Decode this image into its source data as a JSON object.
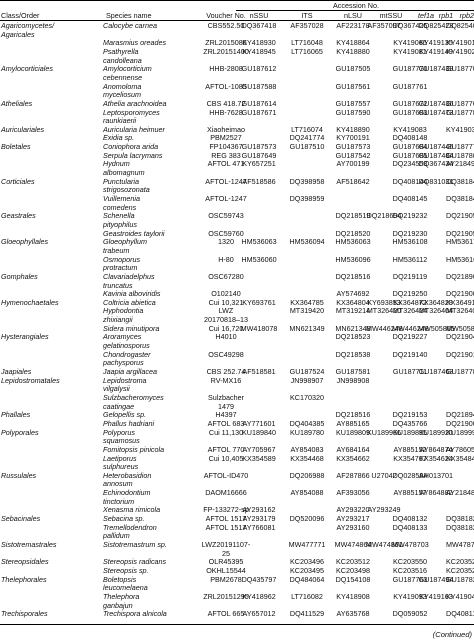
{
  "table": {
    "group_header": "Accession No.",
    "columns": [
      "Class/Order",
      "Species name",
      "Voucher No.",
      "nSSU",
      "ITS",
      "nLSU",
      "mtSSU",
      "tef1a",
      "rpb1",
      "rpb2"
    ],
    "rows": [
      {
        "order": "Agaricomycetes/",
        "species": "Calocybe carnea",
        "voucher": "CBS552.50",
        "nssu": "DQ367418",
        "its": "AF357028",
        "nlsu": "AF223178",
        "mtssu": "AF357097",
        "tef": "DQ367425",
        "rpb1": "DQ825423",
        "rpb2": "DQ825407"
      },
      {
        "order": "Agaricales",
        "species": "",
        "voucher": "",
        "nssu": "",
        "its": "",
        "nlsu": "",
        "mtssu": "",
        "tef": "",
        "rpb1": "",
        "rpb2": ""
      },
      {
        "order": "",
        "species": "Marasmius oreades",
        "voucher": "ZRL2015086",
        "nssu": "KY418930",
        "its": "LT716048",
        "nlsu": "KY418864",
        "mtssu": "",
        "tef": "KY419066",
        "rpb1": "KY419135",
        "rpb2": "KY419010"
      },
      {
        "order": "",
        "species": "Psathyrella",
        "voucher": "ZRL20151400",
        "nssu": "KY418945",
        "its": "LT716065",
        "nlsu": "KY418880",
        "mtssu": "",
        "tef": "KY419081",
        "rpb1": "KY419149",
        "rpb2": "KY419025"
      },
      {
        "order": "",
        "species": "candolleana",
        "voucher": "",
        "nssu": "",
        "its": "",
        "nlsu": "",
        "mtssu": "",
        "tef": "",
        "rpb1": "",
        "rpb2": ""
      },
      {
        "order": "Amylocorticiales",
        "species": "Amylocorticium",
        "voucher": "HHB-2808",
        "nssu": "GU187612",
        "its": "",
        "nlsu": "GU187505",
        "mtssu": "",
        "tef": "GU187770",
        "rpb1": "GU187439",
        "rpb2": "GU187700"
      },
      {
        "order": "",
        "species": "cebennense",
        "voucher": "",
        "nssu": "",
        "its": "",
        "nlsu": "",
        "mtssu": "",
        "tef": "",
        "rpb1": "",
        "rpb2": ""
      },
      {
        "order": "",
        "species": "Anomoloma",
        "voucher": "AFTOL-1085",
        "nssu": "GU187588",
        "its": "",
        "nlsu": "GU187561",
        "mtssu": "",
        "tef": "GU187761",
        "rpb1": "",
        "rpb2": ""
      },
      {
        "order": "",
        "species": "myceliosum",
        "voucher": "",
        "nssu": "",
        "its": "",
        "nlsu": "",
        "mtssu": "",
        "tef": "",
        "rpb1": "",
        "rpb2": ""
      },
      {
        "order": "Atheliales",
        "species": "Athelia arachnoidea",
        "voucher": "CBS 418.72",
        "nssu": "GU187614",
        "its": "",
        "nlsu": "GU187557",
        "mtssu": "",
        "tef": "GU187672",
        "rpb1": "GU187436",
        "rpb2": "GU187769"
      },
      {
        "order": "",
        "species": "Leptosporomyces",
        "voucher": "HHB-7628",
        "nssu": "GU187671",
        "its": "",
        "nlsu": "GU187590",
        "mtssu": "",
        "tef": "GU187683",
        "rpb1": "GU187473",
        "rpb2": "GU187788"
      },
      {
        "order": "",
        "species": "raunkiaerii",
        "voucher": "",
        "nssu": "",
        "its": "",
        "nlsu": "",
        "mtssu": "",
        "tef": "",
        "rpb1": "",
        "rpb2": ""
      },
      {
        "order": "Auriculariales",
        "species": "Auricularia heimuer",
        "voucher": "Xiaoheimao",
        "nssu": "",
        "its": "LT716074",
        "nlsu": "KY418890",
        "mtssu": "",
        "tef": "KY419083",
        "rpb1": "",
        "rpb2": "KY419035"
      },
      {
        "order": "",
        "species": "Exidia sp.",
        "voucher": "PBM2527",
        "nssu": "",
        "its": "DQ241774",
        "nlsu": "KY700191",
        "mtssu": "",
        "tef": "DQ408148",
        "rpb1": "",
        "rpb2": ""
      },
      {
        "order": "Boletales",
        "species": "Coniophora arida",
        "voucher": "FP104367",
        "nssu": "GU187573",
        "its": "GU187510",
        "nlsu": "GU187573",
        "mtssu": "",
        "tef": "GU187684",
        "rpb1": "GU187445",
        "rpb2": "GU187775"
      },
      {
        "order": "",
        "species": "Serpula lacrymans",
        "voucher": "REG 383",
        "nssu": "GU187649",
        "its": "",
        "nlsu": "GU187542",
        "mtssu": "",
        "tef": "GU187685",
        "rpb1": "GU187484",
        "rpb2": "GU187809"
      },
      {
        "order": "",
        "species": "Hydnum",
        "voucher": "AFTOL 471",
        "nssu": "KY657251",
        "its": "",
        "nlsu": "AY700199",
        "mtssu": "",
        "tef": "DQ234553",
        "rpb1": "DQ367434",
        "rpb2": "AY218491"
      },
      {
        "order": "",
        "species": "albomagnum",
        "voucher": "",
        "nssu": "",
        "its": "",
        "nlsu": "",
        "mtssu": "",
        "tef": "",
        "rpb1": "",
        "rpb2": ""
      },
      {
        "order": "Corticiales",
        "species": "Punctularia",
        "voucher": "AFTOL-1247",
        "nssu": "AF518586",
        "its": "DQ398958",
        "nlsu": "AF518642",
        "mtssu": "",
        "tef": "DQ408144",
        "rpb1": "DQ831031",
        "rpb2": "DQ381844"
      },
      {
        "order": "",
        "species": "strigosozonata",
        "voucher": "",
        "nssu": "",
        "its": "",
        "nlsu": "",
        "mtssu": "",
        "tef": "",
        "rpb1": "",
        "rpb2": ""
      },
      {
        "order": "",
        "species": "Vuillemenia",
        "voucher": "AFTOL-1247",
        "nssu": "",
        "its": "DQ398959",
        "nlsu": "",
        "mtssu": "",
        "tef": "DQ408145",
        "rpb1": "",
        "rpb2": "DQ381845"
      },
      {
        "order": "",
        "species": "comedens",
        "voucher": "",
        "nssu": "",
        "its": "",
        "nlsu": "",
        "mtssu": "",
        "tef": "",
        "rpb1": "",
        "rpb2": ""
      },
      {
        "order": "Geastrales",
        "species": "Schenella",
        "voucher": "OSC59743",
        "nssu": "",
        "its": "",
        "nlsu": "DQ218519",
        "mtssu": "DQ218694",
        "tef": "DQ219232",
        "rpb1": "",
        "rpb2": "DQ219051"
      },
      {
        "order": "",
        "species": "pityophilus",
        "voucher": "",
        "nssu": "",
        "its": "",
        "nlsu": "",
        "mtssu": "",
        "tef": "",
        "rpb1": "",
        "rpb2": ""
      },
      {
        "order": "",
        "species": "Geastroides taylorii",
        "voucher": "OSC59760",
        "nssu": "",
        "its": "",
        "nlsu": "DQ218520",
        "mtssu": "",
        "tef": "DQ219230",
        "rpb1": "",
        "rpb2": "DQ219052"
      },
      {
        "order": "Gloeophyllales",
        "species": "Gloeophyllum",
        "voucher": "1320",
        "nssu": "HM536063",
        "its": "HM536094",
        "nlsu": "HM536063",
        "mtssu": "",
        "tef": "HM536108",
        "rpb1": "",
        "rpb2": "HM536173"
      },
      {
        "order": "",
        "species": "trabeum",
        "voucher": "",
        "nssu": "",
        "its": "",
        "nlsu": "",
        "mtssu": "",
        "tef": "",
        "rpb1": "",
        "rpb2": ""
      },
      {
        "order": "",
        "species": "Osmoporus",
        "voucher": "H-80",
        "nssu": "HM536060",
        "its": "",
        "nlsu": "HM536096",
        "mtssu": "",
        "tef": "HM536112",
        "rpb1": "",
        "rpb2": "HM536166"
      },
      {
        "order": "",
        "species": "protractum",
        "voucher": "",
        "nssu": "",
        "its": "",
        "nlsu": "",
        "mtssu": "",
        "tef": "",
        "rpb1": "",
        "rpb2": ""
      },
      {
        "order": "Gomphales",
        "species": "Clavariadelphus",
        "voucher": "OSC67280",
        "nssu": "",
        "its": "",
        "nlsu": "DQ218516",
        "mtssu": "",
        "tef": "DQ219119",
        "rpb1": "",
        "rpb2": "DQ218907"
      },
      {
        "order": "",
        "species": "truncatus",
        "voucher": "",
        "nssu": "",
        "its": "",
        "nlsu": "",
        "mtssu": "",
        "tef": "",
        "rpb1": "",
        "rpb2": ""
      },
      {
        "order": "",
        "species": "Kavinia alboviridis",
        "voucher": "O102140",
        "nssu": "",
        "its": "",
        "nlsu": "AY574692",
        "mtssu": "",
        "tef": "DQ219250",
        "rpb1": "",
        "rpb2": "DQ219005"
      },
      {
        "order": "Hymenochaetales",
        "species": "Coltricia abietica",
        "voucher": "Cui 10,321",
        "nssu": "KY693761",
        "its": "KX364785",
        "nlsu": "KX364804",
        "mtssu": "KY693853",
        "tef": "KX364872",
        "rpb1": "KX364828",
        "rpb2": "KX364916"
      },
      {
        "order": "",
        "species": "Hyphodontia",
        "voucher": "LWZ",
        "nssu": "",
        "its": "MT319420",
        "nlsu": "MT319214",
        "mtssu": "MT326420",
        "tef": "MT326424",
        "rpb1": "MT326404",
        "rpb2": "MT326406"
      },
      {
        "order": "",
        "species": "zhixiangii",
        "voucher": "20170818–13",
        "nssu": "",
        "its": "",
        "nlsu": "",
        "mtssu": "",
        "tef": "",
        "rpb1": "",
        "rpb2": ""
      },
      {
        "order": "",
        "species": "Sidera minutipora",
        "voucher": "Cui 16,720",
        "nssu": "MW418078",
        "its": "MN621349",
        "nlsu": "MN621348",
        "mtssu": "MW446248",
        "tef": "MW446248",
        "rpb1": "MW505865",
        "rpb2": "MW505866"
      },
      {
        "order": "Hysterangiales",
        "species": "Aroramyces",
        "voucher": "H4010",
        "nssu": "",
        "its": "",
        "nlsu": "DQ218523",
        "mtssu": "",
        "tef": "DQ219227",
        "rpb1": "",
        "rpb2": "DQ219049"
      },
      {
        "order": "",
        "species": "gelatinosporus",
        "voucher": "",
        "nssu": "",
        "its": "",
        "nlsu": "",
        "mtssu": "",
        "tef": "",
        "rpb1": "",
        "rpb2": ""
      },
      {
        "order": "",
        "species": "Chondrogaster",
        "voucher": "OSC49298",
        "nssu": "",
        "its": "",
        "nlsu": "DQ218538",
        "mtssu": "",
        "tef": "DQ219140",
        "rpb1": "",
        "rpb2": "DQ219013"
      },
      {
        "order": "",
        "species": "pachysporus",
        "voucher": "",
        "nssu": "",
        "its": "",
        "nlsu": "",
        "mtssu": "",
        "tef": "",
        "rpb1": "",
        "rpb2": ""
      },
      {
        "order": "Jaapiales",
        "species": "Jaapia argillacea",
        "voucher": "CBS 252.74",
        "nssu": "AF518581",
        "its": "GU187524",
        "nlsu": "GU187581",
        "mtssu": "",
        "tef": "GU187711",
        "rpb1": "GU187463",
        "rpb2": "GU187788"
      },
      {
        "order": "Lepidostromatales",
        "species": "Lepidostroma",
        "voucher": "RV-MX16",
        "nssu": "",
        "its": "JN998907",
        "nlsu": "JN998908",
        "mtssu": "",
        "tef": "",
        "rpb1": "",
        "rpb2": ""
      },
      {
        "order": "",
        "species": "vilgalysii",
        "voucher": "",
        "nssu": "",
        "its": "",
        "nlsu": "",
        "mtssu": "",
        "tef": "",
        "rpb1": "",
        "rpb2": ""
      },
      {
        "order": "",
        "species": "Sulzbacheromyces",
        "voucher": "Sulzbacher",
        "nssu": "",
        "its": "KC170320",
        "nlsu": "",
        "mtssu": "",
        "tef": "",
        "rpb1": "",
        "rpb2": ""
      },
      {
        "order": "",
        "species": "caatingae",
        "voucher": "1479",
        "nssu": "",
        "its": "",
        "nlsu": "",
        "mtssu": "",
        "tef": "",
        "rpb1": "",
        "rpb2": ""
      },
      {
        "order": "Phallales",
        "species": "Gelopellis sp.",
        "voucher": "H4397",
        "nssu": "",
        "its": "",
        "nlsu": "DQ218516",
        "mtssu": "",
        "tef": "DQ219153",
        "rpb1": "",
        "rpb2": "DQ218943"
      },
      {
        "order": "",
        "species": "Phallus hadriani",
        "voucher": "AFTOL 683",
        "nssu": "AY771601",
        "its": "DQ404385",
        "nlsu": "AY885165",
        "mtssu": "",
        "tef": "DQ435766",
        "rpb1": "",
        "rpb2": "DQ219005"
      },
      {
        "order": "Polyporales",
        "species": "Polyporus",
        "voucher": "Cui 11,130",
        "nssu": "KU189840",
        "its": "KU189780",
        "nlsu": "KU189809",
        "mtssu": "KU189966",
        "tef": "KU189895",
        "rpb1": "KU189920",
        "rpb2": "KU189994"
      },
      {
        "order": "",
        "species": "squamosus",
        "voucher": "",
        "nssu": "",
        "its": "",
        "nlsu": "",
        "mtssu": "",
        "tef": "",
        "rpb1": "",
        "rpb2": ""
      },
      {
        "order": "",
        "species": "Fomitopsis pinicola",
        "voucher": "AFTOL 770",
        "nssu": "AY705967",
        "its": "AY854083",
        "nlsu": "AY684164",
        "mtssu": "",
        "tef": "AY885152",
        "rpb1": "AY864874",
        "rpb2": "AY786056"
      },
      {
        "order": "",
        "species": "Laetiporus",
        "voucher": "Cui 10,405",
        "nssu": "KX354589",
        "its": "KX354468",
        "nlsu": "KX354662",
        "mtssu": "",
        "tef": "KX354707",
        "rpb1": "KX354624",
        "rpb2": "KX354845"
      },
      {
        "order": "",
        "species": "sulphureus",
        "voucher": "",
        "nssu": "",
        "its": "",
        "nlsu": "",
        "mtssu": "",
        "tef": "",
        "rpb1": "",
        "rpb2": ""
      },
      {
        "order": "Russulales",
        "species": "Heterobasidion",
        "voucher": "AFTOL-ID470",
        "nssu": "",
        "its": "DQ206988",
        "nlsu": "AF287866",
        "mtssu": "U27042",
        "tef": "DQ028584",
        "rpb1": "AH013701",
        "rpb2": ""
      },
      {
        "order": "",
        "species": "annosum",
        "voucher": "",
        "nssu": "",
        "its": "",
        "nlsu": "",
        "mtssu": "",
        "tef": "",
        "rpb1": "",
        "rpb2": ""
      },
      {
        "order": "",
        "species": "Echinodontium",
        "voucher": "DAOM16666",
        "nssu": "",
        "its": "AY854088",
        "nlsu": "AF393056",
        "mtssu": "",
        "tef": "AY885157",
        "rpb1": "AY864882",
        "rpb2": "AY218482"
      },
      {
        "order": "",
        "species": "tinctorium",
        "voucher": "",
        "nssu": "",
        "its": "",
        "nlsu": "",
        "mtssu": "",
        "tef": "",
        "rpb1": "",
        "rpb2": ""
      },
      {
        "order": "",
        "species": "Xenasma rimicola",
        "voucher": "FP-133272-sp",
        "nssu": "AY293162",
        "its": "",
        "nlsu": "AY293220",
        "mtssu": "AY293249",
        "tef": "",
        "rpb1": "",
        "rpb2": ""
      },
      {
        "order": "Sebacinales",
        "species": "Sebacina sp.",
        "voucher": "AFTOL 1517",
        "nssu": "AY293179",
        "its": "DQ520096",
        "nlsu": "AY293217",
        "mtssu": "",
        "tef": "DQ408132",
        "rpb1": "",
        "rpb2": "DQ381826"
      },
      {
        "order": "",
        "species": "Tremellodendron",
        "voucher": "AFTOL 1517",
        "nssu": "AY766081",
        "its": "",
        "nlsu": "AY293160",
        "mtssu": "",
        "tef": "DQ408133",
        "rpb1": "",
        "rpb2": "DQ381827"
      },
      {
        "order": "",
        "species": "pallidum",
        "voucher": "",
        "nssu": "",
        "its": "",
        "nlsu": "",
        "mtssu": "",
        "tef": "",
        "rpb1": "",
        "rpb2": ""
      },
      {
        "order": "Sistotremastrales",
        "species": "Sistotremastrum sp.",
        "voucher": "LWZ20191107-",
        "nssu": "",
        "its": "MW477771",
        "nlsu": "MW474864",
        "mtssu": "MW474861",
        "tef": "MW478703",
        "rpb1": "",
        "rpb2": "MW478732"
      },
      {
        "order": "",
        "species": "",
        "voucher": "25",
        "nssu": "",
        "its": "",
        "nlsu": "",
        "mtssu": "",
        "tef": "",
        "rpb1": "",
        "rpb2": ""
      },
      {
        "order": "Stereopsidales",
        "species": "Stereopsis radicans",
        "voucher": "OLR45395",
        "nssu": "",
        "its": "KC203496",
        "nlsu": "KC203512",
        "mtssu": "",
        "tef": "KC203550",
        "rpb1": "",
        "rpb2": "KC203529"
      },
      {
        "order": "",
        "species": "Stereopsis sp.",
        "voucher": "OKHL15544",
        "nssu": "",
        "its": "KC203495",
        "nlsu": "KC203498",
        "mtssu": "",
        "tef": "KC203516",
        "rpb1": "",
        "rpb2": "KC203522"
      },
      {
        "order": "Thelephorales",
        "species": "Boletopsis",
        "voucher": "PBM2678",
        "nssu": "DQ435797",
        "its": "DQ484064",
        "nlsu": "DQ154108",
        "mtssu": "",
        "tef": "GU187763",
        "rpb1": "GU187494",
        "rpb2": "GU187820"
      },
      {
        "order": "",
        "species": "leucomelaena",
        "voucher": "",
        "nssu": "",
        "its": "",
        "nlsu": "",
        "mtssu": "",
        "tef": "",
        "rpb1": "",
        "rpb2": ""
      },
      {
        "order": "",
        "species": "Thelephora",
        "voucher": "ZRL20151295",
        "nssu": "KY418962",
        "its": "LT716082",
        "nlsu": "KY418908",
        "mtssu": "",
        "tef": "KY419093",
        "rpb1": "KY419163",
        "rpb2": "KY419043"
      },
      {
        "order": "",
        "species": "ganbajun",
        "voucher": "",
        "nssu": "",
        "its": "",
        "nlsu": "",
        "mtssu": "",
        "tef": "",
        "rpb1": "",
        "rpb2": ""
      },
      {
        "order": "Trechisporales",
        "species": "Trechispora alnicola",
        "voucher": "AFTOL 665",
        "nssu": "AY657012",
        "its": "DQ411529",
        "nlsu": "AY635768",
        "mtssu": "",
        "tef": "DQ059052",
        "rpb1": "",
        "rpb2": "DQ408114"
      }
    ],
    "continued": "(Continued)"
  }
}
